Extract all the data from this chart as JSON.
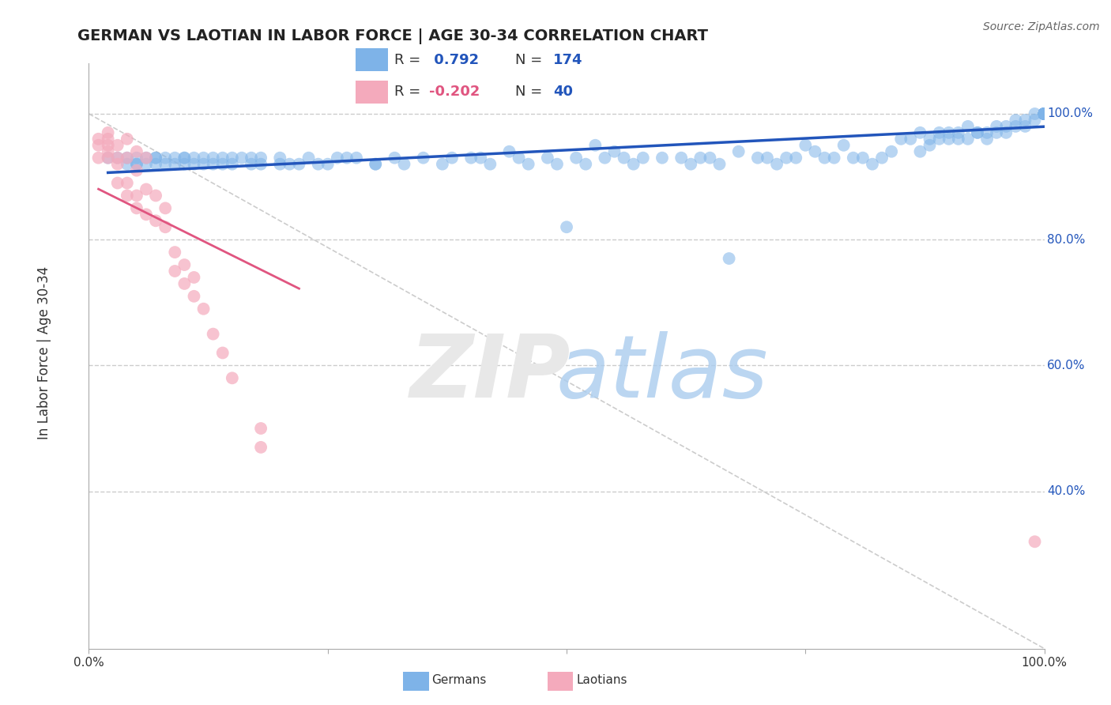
{
  "title": "GERMAN VS LAOTIAN IN LABOR FORCE | AGE 30-34 CORRELATION CHART",
  "source": "Source: ZipAtlas.com",
  "ylabel": "In Labor Force | Age 30-34",
  "xlim": [
    0.0,
    1.0
  ],
  "ylim": [
    0.15,
    1.08
  ],
  "y_tick_positions": [
    0.4,
    0.6,
    0.8,
    1.0
  ],
  "y_tick_labels": [
    "40.0%",
    "60.0%",
    "80.0%",
    "100.0%"
  ],
  "blue_R": 0.792,
  "blue_N": 174,
  "pink_R": -0.202,
  "pink_N": 40,
  "blue_color": "#7EB3E8",
  "blue_line_color": "#2255BB",
  "pink_color": "#F4AABC",
  "pink_line_color": "#E05580",
  "background_color": "#FFFFFF",
  "grid_color": "#CCCCCC",
  "blue_x": [
    0.02,
    0.03,
    0.04,
    0.04,
    0.05,
    0.05,
    0.05,
    0.06,
    0.06,
    0.07,
    0.07,
    0.07,
    0.08,
    0.08,
    0.09,
    0.09,
    0.1,
    0.1,
    0.1,
    0.11,
    0.11,
    0.12,
    0.12,
    0.13,
    0.13,
    0.14,
    0.14,
    0.15,
    0.15,
    0.16,
    0.17,
    0.17,
    0.18,
    0.18,
    0.2,
    0.2,
    0.21,
    0.22,
    0.23,
    0.24,
    0.25,
    0.26,
    0.27,
    0.28,
    0.3,
    0.3,
    0.32,
    0.33,
    0.35,
    0.37,
    0.38,
    0.4,
    0.41,
    0.42,
    0.44,
    0.45,
    0.46,
    0.48,
    0.49,
    0.5,
    0.51,
    0.52,
    0.53,
    0.54,
    0.55,
    0.56,
    0.57,
    0.58,
    0.6,
    0.62,
    0.63,
    0.64,
    0.65,
    0.66,
    0.67,
    0.68,
    0.7,
    0.71,
    0.72,
    0.73,
    0.74,
    0.75,
    0.76,
    0.77,
    0.78,
    0.79,
    0.8,
    0.81,
    0.82,
    0.83,
    0.84,
    0.85,
    0.86,
    0.87,
    0.87,
    0.88,
    0.88,
    0.89,
    0.89,
    0.9,
    0.9,
    0.91,
    0.91,
    0.92,
    0.92,
    0.93,
    0.93,
    0.94,
    0.94,
    0.95,
    0.95,
    0.96,
    0.96,
    0.97,
    0.97,
    0.98,
    0.98,
    0.99,
    0.99,
    1.0,
    1.0,
    1.0,
    1.0,
    1.0,
    1.0,
    1.0,
    1.0,
    1.0,
    1.0,
    1.0,
    1.0,
    1.0,
    1.0,
    1.0,
    1.0,
    1.0,
    1.0,
    1.0,
    1.0,
    1.0,
    1.0,
    1.0,
    1.0,
    1.0,
    1.0,
    1.0,
    1.0,
    1.0,
    1.0,
    1.0,
    1.0,
    1.0,
    1.0,
    1.0,
    1.0,
    1.0,
    1.0,
    1.0
  ],
  "blue_y": [
    0.93,
    0.93,
    0.92,
    0.93,
    0.92,
    0.93,
    0.92,
    0.93,
    0.92,
    0.93,
    0.93,
    0.92,
    0.92,
    0.93,
    0.93,
    0.92,
    0.93,
    0.92,
    0.93,
    0.93,
    0.92,
    0.93,
    0.92,
    0.92,
    0.93,
    0.92,
    0.93,
    0.93,
    0.92,
    0.93,
    0.93,
    0.92,
    0.93,
    0.92,
    0.93,
    0.92,
    0.92,
    0.92,
    0.93,
    0.92,
    0.92,
    0.93,
    0.93,
    0.93,
    0.92,
    0.92,
    0.93,
    0.92,
    0.93,
    0.92,
    0.93,
    0.93,
    0.93,
    0.92,
    0.94,
    0.93,
    0.92,
    0.93,
    0.92,
    0.82,
    0.93,
    0.92,
    0.95,
    0.93,
    0.94,
    0.93,
    0.92,
    0.93,
    0.93,
    0.93,
    0.92,
    0.93,
    0.93,
    0.92,
    0.77,
    0.94,
    0.93,
    0.93,
    0.92,
    0.93,
    0.93,
    0.95,
    0.94,
    0.93,
    0.93,
    0.95,
    0.93,
    0.93,
    0.92,
    0.93,
    0.94,
    0.96,
    0.96,
    0.97,
    0.94,
    0.96,
    0.95,
    0.96,
    0.97,
    0.97,
    0.96,
    0.96,
    0.97,
    0.98,
    0.96,
    0.97,
    0.97,
    0.97,
    0.96,
    0.97,
    0.98,
    0.98,
    0.97,
    0.98,
    0.99,
    0.98,
    0.99,
    0.99,
    1.0,
    1.0,
    1.0,
    1.0,
    1.0,
    1.0,
    1.0,
    1.0,
    1.0,
    1.0,
    1.0,
    1.0,
    1.0,
    1.0,
    1.0,
    1.0,
    1.0,
    1.0,
    1.0,
    1.0,
    1.0,
    1.0,
    1.0,
    1.0,
    1.0,
    1.0,
    1.0,
    1.0,
    1.0,
    1.0,
    1.0,
    1.0,
    1.0,
    1.0,
    1.0,
    1.0,
    1.0,
    1.0,
    1.0,
    1.0
  ],
  "pink_x": [
    0.01,
    0.01,
    0.01,
    0.02,
    0.02,
    0.02,
    0.02,
    0.02,
    0.03,
    0.03,
    0.03,
    0.03,
    0.04,
    0.04,
    0.04,
    0.04,
    0.05,
    0.05,
    0.05,
    0.05,
    0.06,
    0.06,
    0.06,
    0.07,
    0.07,
    0.08,
    0.08,
    0.09,
    0.09,
    0.1,
    0.1,
    0.11,
    0.11,
    0.12,
    0.13,
    0.14,
    0.15,
    0.18,
    0.18,
    0.99
  ],
  "pink_y": [
    0.96,
    0.95,
    0.93,
    0.97,
    0.96,
    0.95,
    0.94,
    0.93,
    0.95,
    0.93,
    0.92,
    0.89,
    0.96,
    0.93,
    0.89,
    0.87,
    0.94,
    0.91,
    0.87,
    0.85,
    0.93,
    0.88,
    0.84,
    0.87,
    0.83,
    0.85,
    0.82,
    0.78,
    0.75,
    0.76,
    0.73,
    0.74,
    0.71,
    0.69,
    0.65,
    0.62,
    0.58,
    0.5,
    0.47,
    0.32
  ]
}
